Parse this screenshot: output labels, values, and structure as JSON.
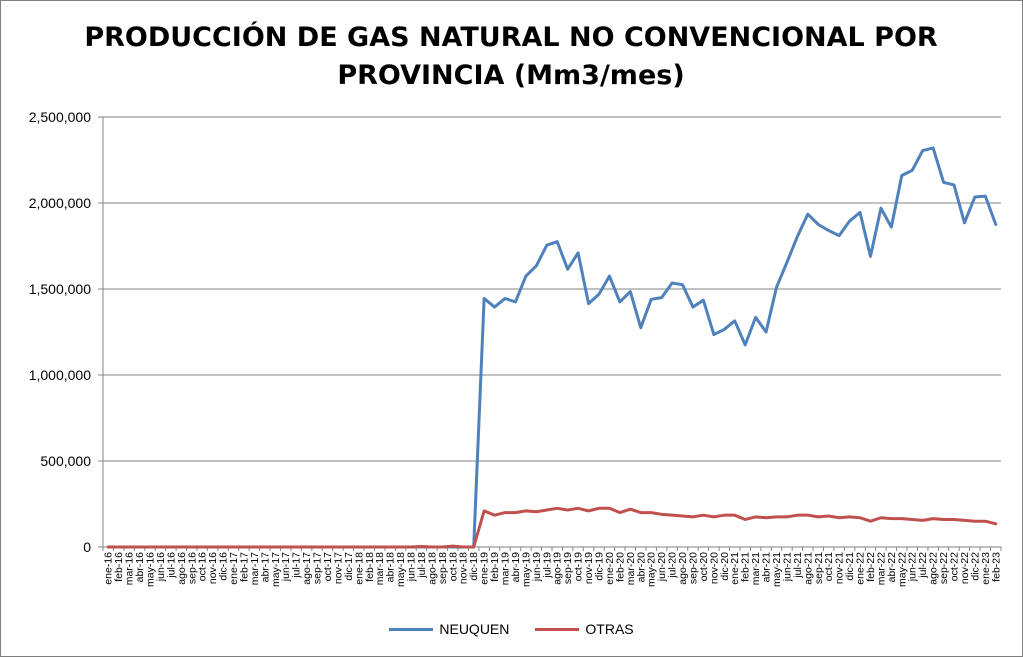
{
  "chart_data": {
    "type": "line",
    "title_line1": "PRODUCCIÓN DE GAS NATURAL NO CONVENCIONAL POR",
    "title_line2": "PROVINCIA (Mm3/mes)",
    "xlabel": "",
    "ylabel": "",
    "ylim": [
      0,
      2500000
    ],
    "yticks": [
      0,
      500000,
      1000000,
      1500000,
      2000000,
      2500000
    ],
    "ytick_labels": [
      "0",
      "500,000",
      "1,000,000",
      "1,500,000",
      "2,000,000",
      "2,500,000"
    ],
    "grid": "horizontal",
    "legend_position": "bottom",
    "x": [
      "ene-16",
      "feb-16",
      "mar-16",
      "abr-16",
      "may-16",
      "jun-16",
      "jul-16",
      "ago-16",
      "sep-16",
      "oct-16",
      "nov-16",
      "dic-16",
      "ene-17",
      "feb-17",
      "mar-17",
      "abr-17",
      "may-17",
      "jun-17",
      "jul-17",
      "ago-17",
      "sep-17",
      "oct-17",
      "nov-17",
      "dic-17",
      "ene-18",
      "feb-18",
      "mar-18",
      "abr-18",
      "may-18",
      "jun-18",
      "jul-18",
      "ago-18",
      "sep-18",
      "oct-18",
      "nov-18",
      "dic-18",
      "ene-19",
      "feb-19",
      "mar-19",
      "abr-19",
      "may-19",
      "jun-19",
      "jul-19",
      "ago-19",
      "sep-19",
      "oct-19",
      "nov-19",
      "dic-19",
      "ene-20",
      "feb-20",
      "mar-20",
      "abr-20",
      "may-20",
      "jun-20",
      "jul-20",
      "ago-20",
      "sep-20",
      "oct-20",
      "nov-20",
      "dic-20",
      "ene-21",
      "feb-21",
      "mar-21",
      "abr-21",
      "may-21",
      "jun-21",
      "jul-21",
      "ago-21",
      "sep-21",
      "oct-21",
      "nov-21",
      "dic-21",
      "ene-22",
      "feb-22",
      "mar-22",
      "abr-22",
      "may-22",
      "jun-22",
      "jul-22",
      "ago-22",
      "sep-22",
      "oct-22",
      "nov-22",
      "dic-22",
      "ene-23",
      "feb-23"
    ],
    "series": [
      {
        "name": "NEUQUEN",
        "color": "#4f81bd",
        "values": [
          0,
          0,
          0,
          0,
          0,
          0,
          0,
          0,
          0,
          0,
          0,
          0,
          0,
          0,
          0,
          0,
          0,
          0,
          0,
          0,
          0,
          0,
          0,
          0,
          0,
          0,
          0,
          0,
          0,
          0,
          0,
          0,
          0,
          0,
          0,
          0,
          1445000,
          1395000,
          1445000,
          1425000,
          1575000,
          1635000,
          1755000,
          1775000,
          1615000,
          1710000,
          1415000,
          1470000,
          1575000,
          1425000,
          1485000,
          1275000,
          1440000,
          1450000,
          1535000,
          1525000,
          1395000,
          1435000,
          1235000,
          1265000,
          1315000,
          1175000,
          1335000,
          1250000,
          1510000,
          1655000,
          1805000,
          1935000,
          1875000,
          1840000,
          1810000,
          1895000,
          1945000,
          1690000,
          1970000,
          1860000,
          2160000,
          2190000,
          2305000,
          2320000,
          2120000,
          2105000,
          1885000,
          2035000,
          2040000,
          1875000
        ]
      },
      {
        "name": "OTRAS",
        "color": "#c0504d",
        "values": [
          0,
          0,
          0,
          0,
          0,
          0,
          0,
          0,
          0,
          0,
          0,
          0,
          0,
          0,
          0,
          0,
          0,
          0,
          0,
          0,
          0,
          0,
          0,
          0,
          0,
          0,
          0,
          0,
          0,
          0,
          3000,
          0,
          0,
          5000,
          0,
          0,
          210000,
          185000,
          200000,
          200000,
          210000,
          205000,
          215000,
          225000,
          215000,
          225000,
          210000,
          225000,
          225000,
          200000,
          220000,
          200000,
          200000,
          190000,
          185000,
          180000,
          175000,
          185000,
          175000,
          185000,
          185000,
          160000,
          175000,
          170000,
          175000,
          175000,
          185000,
          185000,
          175000,
          180000,
          170000,
          175000,
          170000,
          150000,
          170000,
          165000,
          165000,
          160000,
          155000,
          165000,
          160000,
          160000,
          155000,
          150000,
          150000,
          135000
        ]
      }
    ]
  }
}
